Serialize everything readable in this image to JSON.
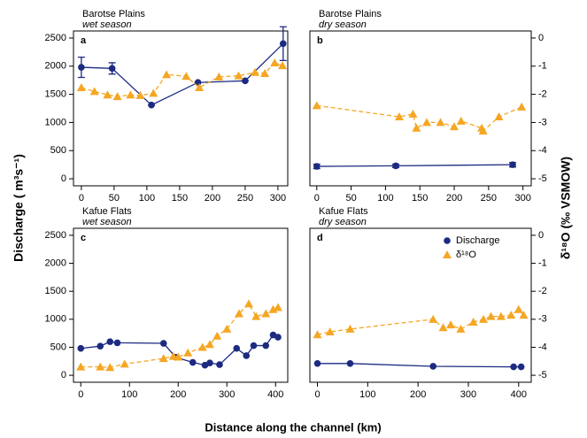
{
  "shared": {
    "xlabel": "Distance along the channel (km)",
    "ylabel": "Discharge ( m³s⁻¹)",
    "y2label": "δ¹⁸O (‰ VSMOW)"
  },
  "chart_data": [
    {
      "type": "line",
      "title": "Barotse Plains",
      "subtitle": "wet season",
      "label": "a",
      "xlim": [
        -12,
        315
      ],
      "xticks": [
        0,
        50,
        100,
        150,
        200,
        250,
        300
      ],
      "ylim": [
        -125,
        2625
      ],
      "yticks": [
        0,
        500,
        1000,
        1500,
        2000,
        2500
      ],
      "y2lim": [
        -5.25,
        0.25
      ],
      "series": [
        {
          "name": "Discharge",
          "color": "#1c2a80",
          "marker": "circle",
          "x": [
            0,
            47,
            107,
            178,
            250,
            308
          ],
          "values": [
            1980,
            1960,
            1310,
            1710,
            1740,
            2400
          ],
          "errors": [
            180,
            100,
            0,
            0,
            0,
            300
          ]
        },
        {
          "name": "δ¹⁸O",
          "color": "#f5a623",
          "marker": "triangle",
          "axis": "y2",
          "x": [
            0,
            20,
            40,
            55,
            75,
            90,
            110,
            130,
            160,
            180,
            210,
            240,
            265,
            280,
            295,
            307
          ],
          "values": [
            -1.76,
            -1.9,
            -2.02,
            -2.08,
            -2.02,
            -2.04,
            -1.96,
            -1.3,
            -1.36,
            -1.76,
            -1.38,
            -1.34,
            -1.22,
            -1.26,
            -0.88,
            -0.98
          ]
        }
      ]
    },
    {
      "type": "line",
      "title": "Barotse Plains",
      "subtitle": "dry season",
      "label": "b",
      "xlim": [
        -10,
        312
      ],
      "xticks": [
        0,
        50,
        100,
        150,
        200,
        250,
        300
      ],
      "ylim": [
        -125,
        2625
      ],
      "y2lim": [
        -5.25,
        0.25
      ],
      "y2ticks": [
        0,
        -1,
        -2,
        -3,
        -4,
        -5
      ],
      "series": [
        {
          "name": "Discharge",
          "color": "#1c2a80",
          "marker": "circle",
          "x": [
            0,
            115,
            285
          ],
          "values": [
            220,
            230,
            250
          ],
          "errors": [
            40,
            30,
            40
          ]
        },
        {
          "name": "δ¹⁸O",
          "color": "#f5a623",
          "marker": "triangle",
          "axis": "y2",
          "x": [
            0,
            120,
            140,
            145,
            160,
            180,
            200,
            210,
            240,
            242,
            265,
            298
          ],
          "values": [
            -2.4,
            -2.8,
            -2.7,
            -3.2,
            -3.0,
            -3.0,
            -3.15,
            -2.95,
            -3.2,
            -3.3,
            -2.8,
            -2.45
          ]
        }
      ]
    },
    {
      "type": "line",
      "title": "Kafue Flats",
      "subtitle": "wet season",
      "label": "c",
      "xlim": [
        -15,
        425
      ],
      "xticks": [
        0,
        100,
        200,
        300,
        400
      ],
      "ylim": [
        -125,
        2625
      ],
      "yticks": [
        0,
        500,
        1000,
        1500,
        2000,
        2500
      ],
      "y2lim": [
        -5.25,
        0.25
      ],
      "series": [
        {
          "name": "Discharge",
          "color": "#1c2a80",
          "marker": "circle",
          "x": [
            0,
            40,
            60,
            75,
            170,
            195,
            230,
            255,
            265,
            285,
            320,
            340,
            355,
            380,
            395,
            405
          ],
          "values": [
            480,
            520,
            600,
            580,
            570,
            320,
            230,
            180,
            220,
            190,
            480,
            350,
            530,
            530,
            720,
            680
          ]
        },
        {
          "name": "δ¹⁸O",
          "color": "#f5a623",
          "marker": "triangle",
          "axis": "y2",
          "x": [
            0,
            40,
            60,
            90,
            170,
            190,
            200,
            220,
            250,
            265,
            280,
            300,
            325,
            345,
            360,
            380,
            395,
            405
          ],
          "values": [
            -4.7,
            -4.7,
            -4.72,
            -4.6,
            -4.4,
            -4.32,
            -4.35,
            -4.2,
            -4.0,
            -3.9,
            -3.6,
            -3.35,
            -2.8,
            -2.45,
            -2.9,
            -2.8,
            -2.65,
            -2.58
          ]
        }
      ]
    },
    {
      "type": "line",
      "title": "Kafue Flats",
      "subtitle": "dry season",
      "label": "d",
      "legend": "upper right",
      "xlim": [
        -15,
        425
      ],
      "xticks": [
        0,
        100,
        200,
        300,
        400
      ],
      "ylim": [
        -125,
        2625
      ],
      "y2lim": [
        -5.25,
        0.25
      ],
      "y2ticks": [
        0,
        -1,
        -2,
        -3,
        -4,
        -5
      ],
      "series": [
        {
          "name": "Discharge",
          "color": "#1c2a80",
          "marker": "circle",
          "x": [
            0,
            65,
            230,
            390,
            405
          ],
          "values": [
            210,
            210,
            160,
            150,
            150
          ]
        },
        {
          "name": "δ¹⁸O",
          "color": "#f5a623",
          "marker": "triangle",
          "axis": "y2",
          "x": [
            0,
            25,
            65,
            230,
            250,
            265,
            285,
            310,
            330,
            345,
            365,
            385,
            400,
            410
          ],
          "values": [
            -3.55,
            -3.45,
            -3.35,
            -3.0,
            -3.3,
            -3.2,
            -3.35,
            -3.1,
            -3.0,
            -2.9,
            -2.9,
            -2.85,
            -2.65,
            -2.85
          ]
        }
      ]
    }
  ]
}
